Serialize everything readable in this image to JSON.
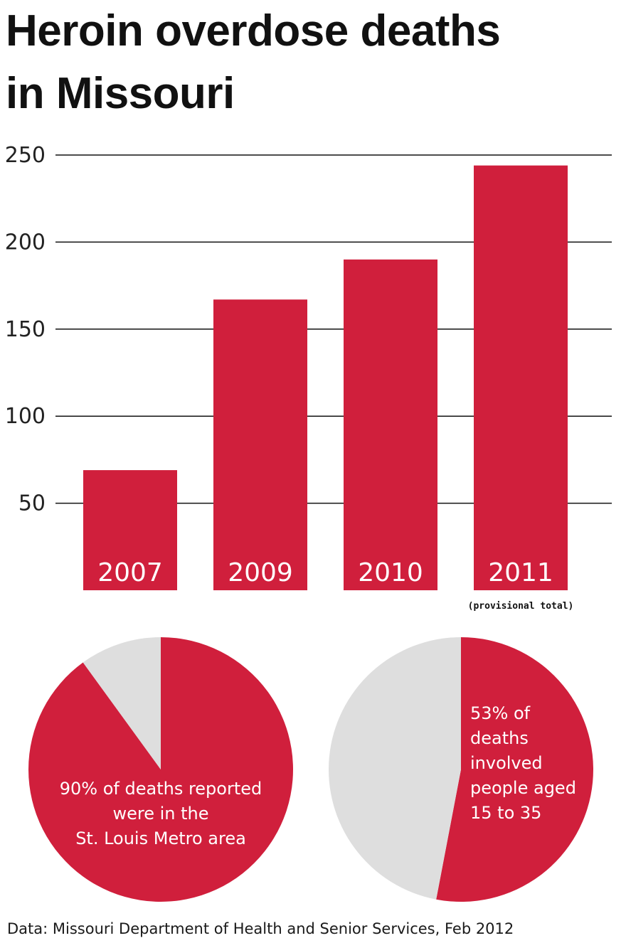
{
  "title_line1": "Heroin overdose deaths",
  "title_line2": "in Missouri",
  "source": "Data: Missouri Department of Health and Senior Services, Feb 2012",
  "colors": {
    "accent": "#d01f3c",
    "pie_rest": "#dedede",
    "grid": "#111111",
    "bar_label": "#ffffff"
  },
  "chart_data": [
    {
      "type": "bar",
      "title": "Heroin overdose deaths in Missouri",
      "categories": [
        "2007",
        "2009",
        "2010",
        "2011"
      ],
      "values": [
        69,
        167,
        190,
        244
      ],
      "note": "(provisional total)",
      "note_category": "2011",
      "yticks": [
        50,
        100,
        150,
        200,
        250
      ],
      "ylim": [
        0,
        250
      ],
      "grid": true,
      "xlabel": "",
      "ylabel": ""
    },
    {
      "type": "pie",
      "slices": [
        {
          "label": "St. Louis Metro area",
          "value": 90
        },
        {
          "label": "",
          "value": 10
        }
      ],
      "text_lines": [
        "90% of deaths reported",
        "were in the",
        "St. Louis Metro area"
      ]
    },
    {
      "type": "pie",
      "slices": [
        {
          "label": "people aged 15 to 35",
          "value": 53
        },
        {
          "label": "",
          "value": 47
        }
      ],
      "text_lines": [
        "53% of",
        "deaths",
        "involved",
        "people aged",
        "15 to 35"
      ]
    }
  ]
}
